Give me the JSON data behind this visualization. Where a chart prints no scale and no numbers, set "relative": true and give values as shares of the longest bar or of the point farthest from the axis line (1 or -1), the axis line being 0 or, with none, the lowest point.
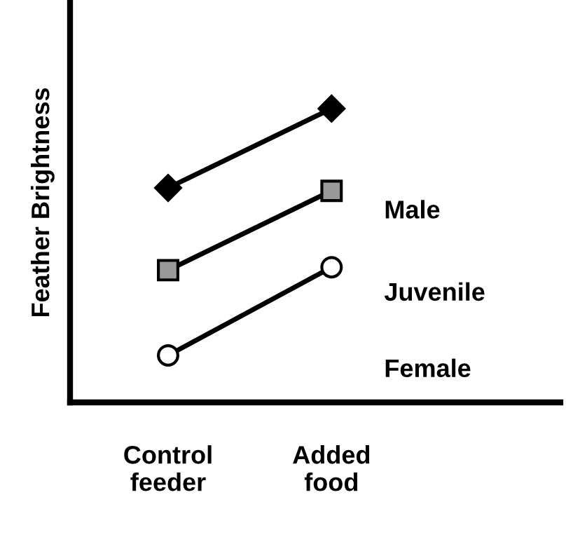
{
  "chart_data": {
    "type": "line",
    "relative": true,
    "ylabel": "Feather Brightness",
    "categories": [
      "Control\nfeeder",
      "Added\nfood"
    ],
    "series": [
      {
        "name": "Male",
        "color": "#000000",
        "marker": "diamond",
        "values": [
          0.73,
          1
        ]
      },
      {
        "name": "Juvenile",
        "color": "#000000",
        "marker": "square",
        "values": [
          0.45,
          0.72
        ]
      },
      {
        "name": "Female",
        "color": "#000000",
        "marker": "circle",
        "values": [
          0.16,
          0.46
        ]
      }
    ],
    "legend": false,
    "grid": false
  }
}
